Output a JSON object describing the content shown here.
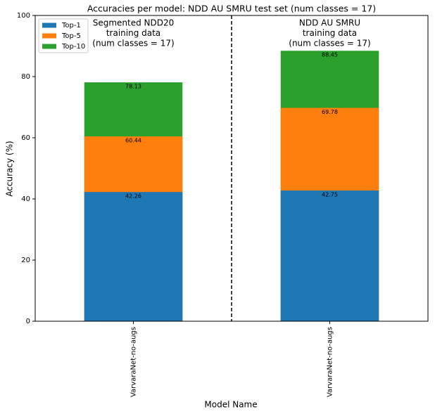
{
  "chart_data": {
    "type": "bar",
    "title": "Accuracies per model: NDD AU SMRU test set (num classes = 17)",
    "x_label": "Model Name",
    "y_label": "Accuracy (%)",
    "categories": [
      "VarvaraNet-no-augs",
      "VarvaraNet-no-augs"
    ],
    "series": [
      {
        "name": "Top-1",
        "color": "#1f77b4",
        "values": [
          42.26,
          42.75
        ]
      },
      {
        "name": "Top-5",
        "color": "#ff7f0e",
        "values": [
          60.44,
          69.78
        ]
      },
      {
        "name": "Top-10",
        "color": "#2ca02c",
        "values": [
          78.13,
          88.45
        ]
      }
    ],
    "annotations": [
      [
        "Segmented NDD20",
        "training data",
        "(num classes = 17)"
      ],
      [
        "NDD AU SMRU",
        "training data",
        "(num classes = 17)"
      ]
    ],
    "ylim": [
      0,
      100
    ],
    "yticks": [
      0,
      20,
      40,
      60,
      80,
      100
    ],
    "legend": "upper left"
  }
}
